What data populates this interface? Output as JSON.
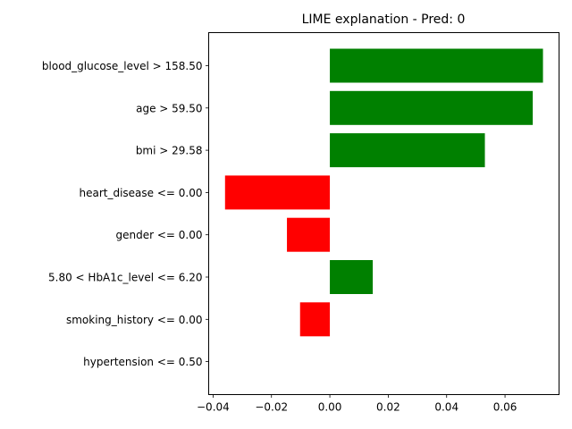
{
  "chart_data": {
    "type": "bar",
    "orientation": "horizontal",
    "title": "LIME explanation - Pred: 0",
    "xlabel": "",
    "ylabel": "",
    "categories": [
      "blood_glucose_level > 158.50",
      "age > 59.50",
      "bmi > 29.58",
      "heart_disease <= 0.00",
      "gender <= 0.00",
      "5.80 < HbA1c_level <= 6.20",
      "smoking_history <= 0.00",
      "hypertension <= 0.50"
    ],
    "values": [
      0.073,
      0.0695,
      0.0531,
      -0.0359,
      -0.0147,
      0.0147,
      -0.0102,
      0.0
    ],
    "xlim": [
      -0.0415,
      0.0785
    ],
    "xticks": [
      -0.04,
      -0.02,
      0.0,
      0.02,
      0.04,
      0.06
    ],
    "xtick_labels": [
      "−0.04",
      "−0.02",
      "0.00",
      "0.02",
      "0.04",
      "0.06"
    ],
    "positive_color": "#008000",
    "negative_color": "#ff0000",
    "grid": false,
    "legend": "none"
  }
}
